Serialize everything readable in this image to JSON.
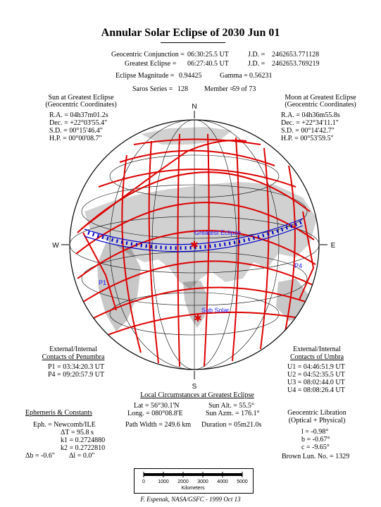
{
  "title": "Annular Solar Eclipse of 2030 Jun 01",
  "header": {
    "geo_conj_label": "Geocentric Conjunction =",
    "geo_conj_time": "06:30:25.5 UT",
    "geo_conj_jd_label": "J.D. =",
    "geo_conj_jd": "2462653.771128",
    "greatest_label": "Greatest Eclipse =",
    "greatest_time": "06:27:40.5 UT",
    "greatest_jd_label": "J.D. =",
    "greatest_jd": "2462653.769219",
    "magnitude_label": "Eclipse Magnitude =",
    "magnitude": "0.94425",
    "gamma_label": "Gamma =",
    "gamma": "0.56231",
    "saros_label": "Saros Series =",
    "saros": "128",
    "member_label": "Member =",
    "member": "59 of 73"
  },
  "sun": {
    "heading1": "Sun at Greatest Eclipse",
    "heading2": "(Geocentric Coordinates)",
    "ra": "R.A. = 04h37m01.2s",
    "dec": "Dec. = +22°03'55.4\"",
    "sd": "S.D. = 00°15'46.4\"",
    "hp": "H.P. = 00°00'08.7\""
  },
  "moon": {
    "heading1": "Moon at Greatest Eclipse",
    "heading2": "(Geocentric Coordinates)",
    "ra": "R.A. = 04h36m55.8s",
    "dec": "Dec. = +22°34'11.1\"",
    "sd": "S.D. = 00°14'42.7\"",
    "hp": "H.P. = 00°53'59.5\""
  },
  "map": {
    "north": "N",
    "south": "S",
    "west": "W",
    "east": "E",
    "greatest_eclipse": "Greatest Eclipse",
    "sub_solar": "Sub Solar",
    "p1": "P1",
    "p4": "P4",
    "colors": {
      "curves": "#dd0000",
      "path": "#0000cc",
      "labels": "#1a1aff",
      "land": "#000000"
    }
  },
  "penumbra": {
    "heading1": "External/Internal",
    "heading2": "Contacts of Penumbra",
    "p1": "P1 = 03:34:20.3 UT",
    "p4": "P4 = 09:20:57.9 UT"
  },
  "umbra": {
    "heading1": "External/Internal",
    "heading2": "Contacts of Umbra",
    "u1": "U1 = 04:46:51.9 UT",
    "u2": "U2 = 04:52:35.5 UT",
    "u3": "U3 = 08:02:44.0 UT",
    "u4": "U4 = 08:08:26.4 UT"
  },
  "local": {
    "heading": "Local Circumstances at Greatest Eclipse",
    "lat": "Lat = 56°30.1'N",
    "long": "Long. = 080°08.8'E",
    "sun_alt": "Sun Alt. = 55.5°",
    "sun_azm": "Sun Azm. = 176.1°",
    "path_width": "Path Width = 249.6 km",
    "duration": "Duration = 05m21.0s"
  },
  "ephemeris": {
    "heading": "Ephemeris & Constants",
    "eph": "Eph. = Newcomb/ILE",
    "dt": "ΔT = 95.8 s",
    "k1": "k1 = 0.2724880",
    "k2": "k2 = 0.2722810",
    "db": "Δb = -0.6\"",
    "dl": "Δl = 0.0\""
  },
  "libration": {
    "heading1": "Geocentric Libration",
    "heading2": "(Optical + Physical)",
    "l": "l = -0.98°",
    "b": "b = -0.67°",
    "c": "c = -9.65°",
    "brown": "Brown Lun. No. = 1329"
  },
  "scale": {
    "ticks": [
      "0",
      "1000",
      "2000",
      "3000",
      "4000",
      "5000"
    ],
    "unit": "Kilometers"
  },
  "credit": "F. Espenak, NASA/GSFC - 1999 Oct 13"
}
